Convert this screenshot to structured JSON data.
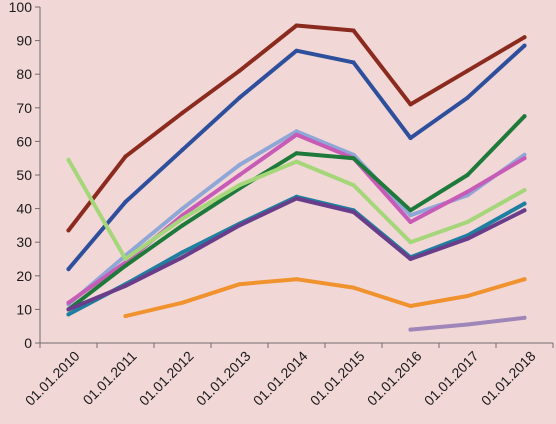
{
  "chart_data": {
    "type": "line",
    "title": "",
    "xlabel": "",
    "ylabel": "",
    "ylim": [
      0,
      100
    ],
    "y_ticks": [
      "0",
      "10",
      "20",
      "30",
      "40",
      "50",
      "60",
      "70",
      "80",
      "90",
      "100"
    ],
    "categories": [
      "01.01.2010",
      "01.01.2011",
      "01.01.2012",
      "01.01.2013",
      "01.01.2014",
      "01.01.2015",
      "01.01.2016",
      "01.01.2017",
      "01.01.2018"
    ],
    "grid": false,
    "legend": "none",
    "series": [
      {
        "color": "#8b2a1e",
        "values": [
          33.5,
          55.5,
          68.5,
          81,
          94.5,
          93,
          71,
          81,
          91
        ]
      },
      {
        "color": "#2e4f9c",
        "values": [
          22,
          42,
          57.5,
          73,
          87,
          83.5,
          61,
          73,
          88.5
        ]
      },
      {
        "color": "#8fa7d6",
        "values": [
          11.5,
          26,
          40,
          53,
          63,
          56,
          38,
          44,
          56
        ]
      },
      {
        "color": "#c75bb6",
        "values": [
          12,
          24,
          38,
          50,
          62,
          55,
          36,
          45,
          55
        ]
      },
      {
        "color": "#1e7a3a",
        "values": [
          10,
          23,
          35,
          46,
          56.5,
          55,
          39.5,
          50,
          67.5
        ]
      },
      {
        "color": "#a6d67a",
        "values": [
          54.5,
          25,
          37,
          47,
          54,
          47,
          30,
          36,
          45.5
        ]
      },
      {
        "color": "#1f7fa0",
        "values": [
          8.5,
          17.5,
          27,
          35.5,
          43.5,
          39.5,
          25.5,
          32,
          41.5
        ]
      },
      {
        "color": "#6a3d8a",
        "values": [
          10,
          17,
          25.5,
          35,
          43,
          39,
          25,
          31,
          39.5
        ]
      },
      {
        "color": "#f0922e",
        "values": [
          null,
          8,
          12,
          17.5,
          19,
          16.5,
          11,
          14,
          19
        ]
      },
      {
        "color": "#9e86b8",
        "values": [
          null,
          null,
          null,
          null,
          null,
          null,
          4,
          5.5,
          7.5
        ]
      }
    ]
  }
}
